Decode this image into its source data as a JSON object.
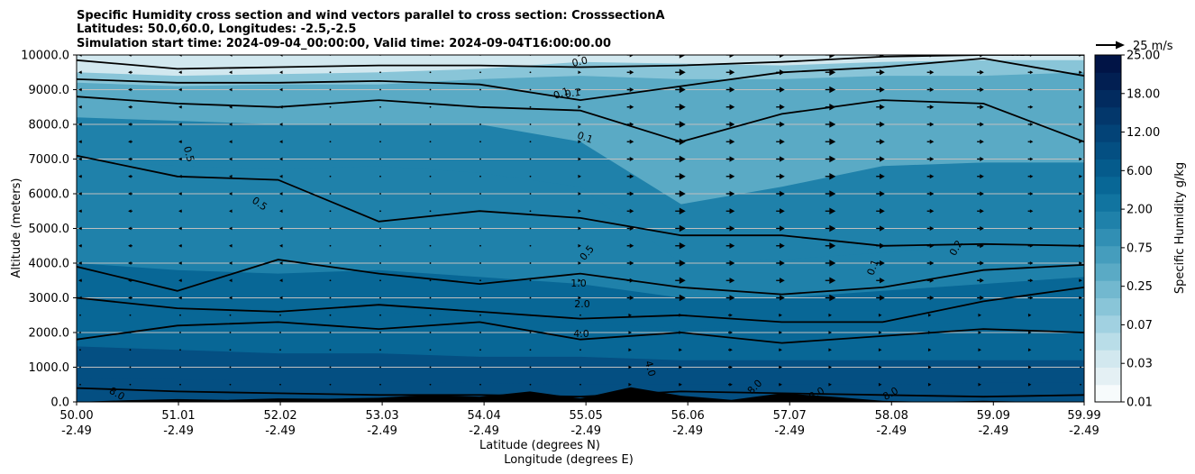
{
  "chart_data": {
    "type": "heatmap",
    "title_lines": [
      "Specific Humidity cross section and wind vectors parallel to cross section: CrosssectionA",
      "Latitudes: 50.0,60.0, Longitudes: -2.5,-2.5",
      "Simulation start time: 2024-09-04_00:00:00, Valid time: 2024-09-04T16:00:00.00"
    ],
    "ylabel": "Altitude (meters)",
    "xlabel_lines": [
      "Latitude (degrees N)",
      "Longitude (degrees E)"
    ],
    "ylim": [
      0,
      10000
    ],
    "xlim": [
      50.0,
      59.99
    ],
    "y_ticks": [
      "0.0",
      "1000.0",
      "2000.0",
      "3000.0",
      "4000.0",
      "5000.0",
      "6000.0",
      "7000.0",
      "8000.0",
      "9000.0",
      "10000.0"
    ],
    "x_ticks": [
      {
        "lat": "50.00",
        "lon": "-2.49"
      },
      {
        "lat": "51.01",
        "lon": "-2.49"
      },
      {
        "lat": "52.02",
        "lon": "-2.49"
      },
      {
        "lat": "53.03",
        "lon": "-2.49"
      },
      {
        "lat": "54.04",
        "lon": "-2.49"
      },
      {
        "lat": "55.05",
        "lon": "-2.49"
      },
      {
        "lat": "56.06",
        "lon": "-2.49"
      },
      {
        "lat": "57.07",
        "lon": "-2.49"
      },
      {
        "lat": "58.08",
        "lon": "-2.49"
      },
      {
        "lat": "59.09",
        "lon": "-2.49"
      },
      {
        "lat": "59.99",
        "lon": "-2.49"
      }
    ],
    "colorbar": {
      "label": "Specific Humidity g/kg",
      "tick_labels": [
        "0.01",
        "0.03",
        "0.07",
        "0.25",
        "0.75",
        "2.00",
        "6.00",
        "12.00",
        "18.00",
        "25.00"
      ],
      "level_colors": [
        "#f7fbfc",
        "#e4f0f4",
        "#d2e8ef",
        "#b9dde8",
        "#a1d1e1",
        "#89c5d8",
        "#72b8cf",
        "#5aaac5",
        "#459dbd",
        "#318fb4",
        "#1f81aa",
        "#1174a0",
        "#086796",
        "#055b8c",
        "#044f82",
        "#034377",
        "#03376b",
        "#022b5f",
        "#021f52",
        "#011446"
      ]
    },
    "wind_key": {
      "label": "25 m/s",
      "speed": 25
    },
    "contour_labels": [
      "0.0",
      "0.1",
      "0.1",
      "0.1",
      "0.5",
      "0.5",
      "0.5",
      "1.0",
      "2.0",
      "4.0",
      "4.0",
      "8.0",
      "0.2",
      "0.1",
      "8.0",
      "8.0",
      "8.0",
      "0.1"
    ],
    "humidity_layers": [
      {
        "value": 0.03,
        "profile": [
          9900,
          9800,
          9850,
          9900,
          9900,
          9900,
          9950,
          9900,
          9950,
          9950,
          9950
        ]
      },
      {
        "value": 0.07,
        "profile": [
          9500,
          9400,
          9450,
          9500,
          9600,
          9800,
          9750,
          9700,
          9800,
          9850,
          9850
        ]
      },
      {
        "value": 0.25,
        "profile": [
          9200,
          9100,
          9150,
          9150,
          9300,
          9400,
          9300,
          9300,
          9400,
          9400,
          9500
        ]
      },
      {
        "value": 0.5,
        "profile": [
          8800,
          8700,
          8700,
          8800,
          8800,
          8700,
          7200,
          8400,
          8800,
          9100,
          9300
        ]
      },
      {
        "value": 0.75,
        "profile": [
          8200,
          8100,
          8000,
          8000,
          8000,
          7500,
          5700,
          6200,
          6800,
          6900,
          6900
        ]
      },
      {
        "value": 1.0,
        "profile": [
          7000,
          6800,
          6700,
          6800,
          6600,
          6200,
          4000,
          4100,
          4300,
          4500,
          4600
        ]
      },
      {
        "value": 2.0,
        "profile": [
          4000,
          3800,
          3700,
          3800,
          3600,
          3400,
          3000,
          3000,
          3200,
          3400,
          3600
        ]
      },
      {
        "value": 4.0,
        "profile": [
          2800,
          2700,
          2600,
          2600,
          2400,
          2300,
          2100,
          2200,
          2200,
          2300,
          2300
        ]
      },
      {
        "value": 6.0,
        "profile": [
          1600,
          1500,
          1400,
          1400,
          1300,
          1300,
          1200,
          1200,
          1200,
          1200,
          1200
        ]
      },
      {
        "value": 8.0,
        "profile": [
          700,
          650,
          600,
          600,
          550,
          500,
          500,
          500,
          500,
          550,
          550
        ]
      }
    ],
    "contour_lines": [
      {
        "label": "0.1",
        "profile": [
          9850,
          9600,
          9650,
          9700,
          9700,
          9650,
          9700,
          9800,
          9950,
          10000,
          10000
        ]
      },
      {
        "label": "0.0",
        "profile": [
          9300,
          9200,
          9200,
          9250,
          9150,
          8700,
          9100,
          9500,
          9650,
          9900,
          9400
        ]
      },
      {
        "label": "0.1",
        "profile": [
          8800,
          8600,
          8500,
          8700,
          8500,
          8400,
          7500,
          8300,
          8700,
          8600,
          7500
        ]
      },
      {
        "label": "0.5",
        "profile": [
          7100,
          6500,
          6400,
          5200,
          5500,
          5300,
          4800,
          4800,
          4500,
          4550,
          4500
        ]
      },
      {
        "label": "1.0",
        "profile": [
          3900,
          3200,
          4100,
          3700,
          3400,
          3700,
          3300,
          3100,
          3300,
          3800,
          3950
        ]
      },
      {
        "label": "2.0",
        "profile": [
          3000,
          2700,
          2600,
          2800,
          2600,
          2400,
          2500,
          2300,
          2300,
          2900,
          3300
        ]
      },
      {
        "label": "4.0",
        "profile": [
          1800,
          2200,
          2300,
          2100,
          2300,
          1800,
          2000,
          1700,
          1900,
          2100,
          2000
        ]
      },
      {
        "label": "8.0",
        "profile": [
          400,
          300,
          250,
          200,
          200,
          150,
          300,
          250,
          200,
          150,
          200
        ]
      }
    ],
    "terrain_profile": [
      0,
      50,
      80,
      60,
      100,
      90,
      120,
      200,
      150,
      300,
      100,
      420,
      180,
      60,
      250,
      150,
      30,
      0,
      30,
      0,
      0
    ],
    "wind_vectors": {
      "levels_m": [
        500,
        1000,
        1500,
        2000,
        2500,
        3000,
        3500,
        4000,
        4500,
        5000,
        5500,
        6000,
        6500,
        7000,
        7500,
        8000,
        8500,
        9000,
        9500,
        10000
      ],
      "columns": 21,
      "u_by_column_upper": [
        -4,
        -5,
        -4,
        -3,
        -2,
        -1,
        0,
        0,
        -1,
        0,
        2,
        8,
        12,
        10,
        10,
        12,
        10,
        8,
        8,
        6,
        4
      ],
      "u_by_column_lower": [
        -1,
        -1,
        -1,
        -1,
        -1,
        0,
        0,
        0,
        0,
        0,
        1,
        3,
        4,
        5,
        4,
        3,
        3,
        2,
        2,
        2,
        1
      ]
    }
  }
}
